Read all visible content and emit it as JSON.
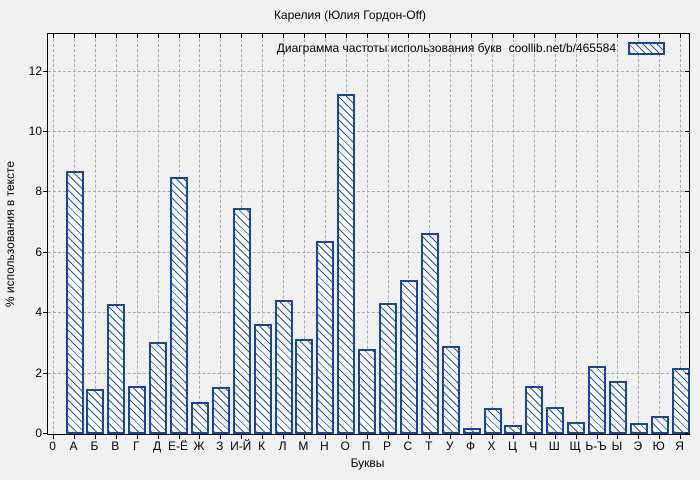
{
  "page": {
    "title": "Карелия (Юлия Гордон-Off)"
  },
  "legend": {
    "label": "Диаграмма частоты использования букв  coollib.net/b/465584"
  },
  "chart_data": {
    "type": "bar",
    "title": "Карелия (Юлия Гордон-Off)",
    "legend": "Диаграмма частоты использования букв  coollib.net/b/465584",
    "legend_position": "top-right-inside",
    "xlabel": "Буквы",
    "ylabel": "% использования в тексте",
    "origin_tick_label": "0",
    "grid": true,
    "hatch_style": "backslash-diagonal",
    "y_ticks": [
      0,
      2,
      4,
      6,
      8,
      10,
      12
    ],
    "ylim": [
      0,
      13.25
    ],
    "categories": [
      "А",
      "Б",
      "В",
      "Г",
      "Д",
      "Е-Ё",
      "Ж",
      "З",
      "И-Й",
      "К",
      "Л",
      "М",
      "Н",
      "О",
      "П",
      "Р",
      "С",
      "Т",
      "У",
      "Ф",
      "Х",
      "Ц",
      "Ч",
      "Ш",
      "Щ",
      "Ь-Ъ",
      "Ы",
      "Э",
      "Ю",
      "Я"
    ],
    "values": [
      8.7,
      1.5,
      4.3,
      1.6,
      3.05,
      8.5,
      1.05,
      1.55,
      7.5,
      3.65,
      4.45,
      3.15,
      6.4,
      11.25,
      2.8,
      4.35,
      5.1,
      6.65,
      2.9,
      0.2,
      0.85,
      0.3,
      1.6,
      0.9,
      0.4,
      2.25,
      1.75,
      0.35,
      0.6,
      2.2
    ],
    "colors": {
      "bar_border": "#17469e",
      "bar_hatch": "#2053ae",
      "bar_fill": "#fdfdfd",
      "grid": "#a9a9a9",
      "axis": "#000000",
      "background": "#f1f1f1",
      "text": "#000000"
    }
  }
}
